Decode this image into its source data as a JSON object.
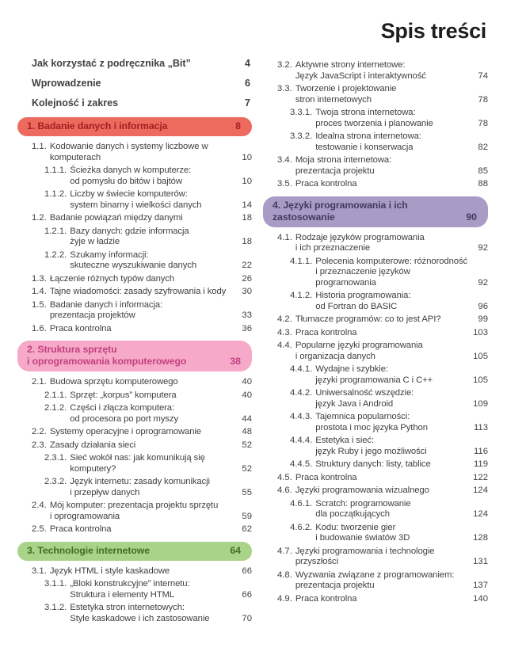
{
  "page_title": "Spis treści",
  "section_colors": {
    "1": {
      "bg": "#ed6a5e",
      "fg": "#a51e22"
    },
    "2": {
      "bg": "#f6a9c9",
      "fg": "#c2417f"
    },
    "3": {
      "bg": "#a9d388",
      "fg": "#3f7022"
    },
    "4": {
      "bg": "#a89cc7",
      "fg": "#413a5e"
    }
  },
  "front_matter": [
    {
      "label": "Jak korzystać z podręcznika „Bit”",
      "page": "4"
    },
    {
      "label": "Wprowadzenie",
      "page": "6"
    },
    {
      "label": "Kolejność i zakres",
      "page": "7"
    }
  ],
  "columns": {
    "left": [
      {
        "type": "section",
        "section": "1",
        "lines": [
          "1. Badanie danych i informacja"
        ],
        "page": "8"
      },
      {
        "type": "entry",
        "level": 1,
        "num": "1.1.",
        "lines": [
          "Kodowanie danych i systemy liczbowe w",
          "komputerach"
        ],
        "page": "10"
      },
      {
        "type": "entry",
        "level": 2,
        "num": "1.1.1.",
        "lines": [
          "Ścieżka danych w komputerze:",
          "od pomysłu do bitów i bajtów"
        ],
        "page": "10"
      },
      {
        "type": "entry",
        "level": 2,
        "num": "1.1.2.",
        "lines": [
          "Liczby w świecie komputerów:",
          "system binarny i wielkości danych"
        ],
        "page": "14"
      },
      {
        "type": "entry",
        "level": 1,
        "num": "1.2.",
        "lines": [
          "Badanie powiązań między danymi"
        ],
        "page": "18"
      },
      {
        "type": "entry",
        "level": 2,
        "num": "1.2.1.",
        "lines": [
          "Bazy danych: gdzie informacja",
          "żyje w ładzie"
        ],
        "page": "18"
      },
      {
        "type": "entry",
        "level": 2,
        "num": "1.2.2.",
        "lines": [
          "Szukamy informacji:",
          "skuteczne wyszukiwanie danych"
        ],
        "page": "22"
      },
      {
        "type": "entry",
        "level": 1,
        "num": "1.3.",
        "lines": [
          "Łączenie różnych typów danych"
        ],
        "page": "26"
      },
      {
        "type": "entry",
        "level": 1,
        "num": "1.4.",
        "lines": [
          "Tajne wiadomości: zasady szyfrowania i kody"
        ],
        "page": "30"
      },
      {
        "type": "entry",
        "level": 1,
        "num": "1.5.",
        "lines": [
          "Badanie danych i informacja:",
          "prezentacja projektów"
        ],
        "page": "33"
      },
      {
        "type": "entry",
        "level": 1,
        "num": "1.6.",
        "lines": [
          "Praca kontrolna"
        ],
        "page": "36"
      },
      {
        "type": "section",
        "section": "2",
        "lines": [
          "2. Struktura sprzętu",
          "i oprogramowania komputerowego"
        ],
        "page": "38"
      },
      {
        "type": "entry",
        "level": 1,
        "num": "2.1.",
        "lines": [
          "Budowa sprzętu komputerowego"
        ],
        "page": "40"
      },
      {
        "type": "entry",
        "level": 2,
        "num": "2.1.1.",
        "lines": [
          "Sprzęt: „korpus” komputera"
        ],
        "page": "40"
      },
      {
        "type": "entry",
        "level": 2,
        "num": "2.1.2.",
        "lines": [
          "Części i złącza komputera:",
          "od procesora po port myszy"
        ],
        "page": "44"
      },
      {
        "type": "entry",
        "level": 1,
        "num": "2.2.",
        "lines": [
          "Systemy operacyjne i oprogramowanie"
        ],
        "page": "48"
      },
      {
        "type": "entry",
        "level": 1,
        "num": "2.3.",
        "lines": [
          "Zasady działania sieci"
        ],
        "page": "52"
      },
      {
        "type": "entry",
        "level": 2,
        "num": "2.3.1.",
        "lines": [
          "Sieć wokół nas: jak komunikują się",
          "komputery?"
        ],
        "page": "52"
      },
      {
        "type": "entry",
        "level": 2,
        "num": "2.3.2.",
        "lines": [
          "Język internetu: zasady komunikacji",
          "i przepływ danych"
        ],
        "page": "55"
      },
      {
        "type": "entry",
        "level": 1,
        "num": "2.4.",
        "lines": [
          "Mój komputer: prezentacja projektu sprzętu",
          "i oprogramowania"
        ],
        "page": "59"
      },
      {
        "type": "entry",
        "level": 1,
        "num": "2.5.",
        "lines": [
          "Praca kontrolna"
        ],
        "page": "62"
      },
      {
        "type": "section",
        "section": "3",
        "lines": [
          "3. Technologie internetowe"
        ],
        "page": "64"
      },
      {
        "type": "entry",
        "level": 1,
        "num": "3.1.",
        "lines": [
          "Język HTML i style kaskadowe"
        ],
        "page": "66"
      },
      {
        "type": "entry",
        "level": 2,
        "num": "3.1.1.",
        "lines": [
          "„Bloki konstrukcyjne” internetu:",
          "Struktura i elementy HTML"
        ],
        "page": "66"
      },
      {
        "type": "entry",
        "level": 2,
        "num": "3.1.2.",
        "lines": [
          "Estetyka stron internetowych:",
          "Style kaskadowe i ich zastosowanie"
        ],
        "page": "70"
      }
    ],
    "right": [
      {
        "type": "entry",
        "level": 1,
        "num": "3.2.",
        "lines": [
          "Aktywne strony internetowe:",
          "Język JavaScript i interaktywność"
        ],
        "page": "74"
      },
      {
        "type": "entry",
        "level": 1,
        "num": "3.3.",
        "lines": [
          "Tworzenie i projektowanie",
          "stron internetowych"
        ],
        "page": "78"
      },
      {
        "type": "entry",
        "level": 2,
        "num": "3.3.1.",
        "lines": [
          "Twoja strona internetowa:",
          "proces tworzenia i planowanie"
        ],
        "page": "78"
      },
      {
        "type": "entry",
        "level": 2,
        "num": "3.3.2.",
        "lines": [
          "Idealna strona internetowa:",
          "testowanie i konserwacja"
        ],
        "page": "82"
      },
      {
        "type": "entry",
        "level": 1,
        "num": "3.4.",
        "lines": [
          "Moja strona internetowa:",
          "prezentacja projektu"
        ],
        "page": "85"
      },
      {
        "type": "entry",
        "level": 1,
        "num": "3.5.",
        "lines": [
          "Praca kontrolna"
        ],
        "page": "88"
      },
      {
        "type": "section",
        "section": "4",
        "lines": [
          "4. Języki programowania i ich zastosowanie"
        ],
        "page": "90"
      },
      {
        "type": "entry",
        "level": 1,
        "num": "4.1.",
        "lines": [
          "Rodzaje języków programowania",
          "i ich przeznaczenie"
        ],
        "page": "92"
      },
      {
        "type": "entry",
        "level": 2,
        "num": "4.1.1.",
        "lines": [
          "Polecenia komputerowe: różnorodność",
          "i przeznaczenie języków programowania"
        ],
        "page": "92"
      },
      {
        "type": "entry",
        "level": 2,
        "num": "4.1.2.",
        "lines": [
          "Historia programowania:",
          "od Fortran do BASIC"
        ],
        "page": "96"
      },
      {
        "type": "entry",
        "level": 1,
        "num": "4.2.",
        "lines": [
          "Tłumacze programów: co to jest API?"
        ],
        "page": "99"
      },
      {
        "type": "entry",
        "level": 1,
        "num": "4.3.",
        "lines": [
          "Praca kontrolna"
        ],
        "page": "103"
      },
      {
        "type": "entry",
        "level": 1,
        "num": "4.4.",
        "lines": [
          "Popularne języki programowania",
          "i organizacja danych"
        ],
        "page": "105"
      },
      {
        "type": "entry",
        "level": 2,
        "num": "4.4.1.",
        "lines": [
          "Wydajne i szybkie:",
          "języki programowania C i C++"
        ],
        "page": "105"
      },
      {
        "type": "entry",
        "level": 2,
        "num": "4.4.2.",
        "lines": [
          "Uniwersalność wszędzie:",
          "język Java i Android"
        ],
        "page": "109"
      },
      {
        "type": "entry",
        "level": 2,
        "num": "4.4.3.",
        "lines": [
          "Tajemnica popularności:",
          "prostota i moc języka Python"
        ],
        "page": "113"
      },
      {
        "type": "entry",
        "level": 2,
        "num": "4.4.4.",
        "lines": [
          "Estetyka i sieć:",
          "język Ruby i jego możliwości"
        ],
        "page": "116"
      },
      {
        "type": "entry",
        "level": 2,
        "num": "4.4.5.",
        "lines": [
          "Struktury danych: listy, tablice"
        ],
        "page": "119"
      },
      {
        "type": "entry",
        "level": 1,
        "num": "4.5.",
        "lines": [
          "Praca kontrolna"
        ],
        "page": "122"
      },
      {
        "type": "entry",
        "level": 1,
        "num": "4.6.",
        "lines": [
          "Języki programowania wizualnego"
        ],
        "page": "124"
      },
      {
        "type": "entry",
        "level": 2,
        "num": "4.6.1.",
        "lines": [
          "Scratch: programowanie",
          "dla początkujących"
        ],
        "page": "124"
      },
      {
        "type": "entry",
        "level": 2,
        "num": "4.6.2.",
        "lines": [
          "Kodu: tworzenie gier",
          "i budowanie światów 3D"
        ],
        "page": "128"
      },
      {
        "type": "entry",
        "level": 1,
        "num": "4.7.",
        "lines": [
          "Języki programowania i technologie",
          "przyszłości"
        ],
        "page": "131"
      },
      {
        "type": "entry",
        "level": 1,
        "num": "4.8.",
        "lines": [
          "Wyzwania związane z programowaniem:",
          "prezentacja projektu"
        ],
        "page": "137"
      },
      {
        "type": "entry",
        "level": 1,
        "num": "4.9.",
        "lines": [
          "Praca kontrolna"
        ],
        "page": "140"
      }
    ]
  }
}
